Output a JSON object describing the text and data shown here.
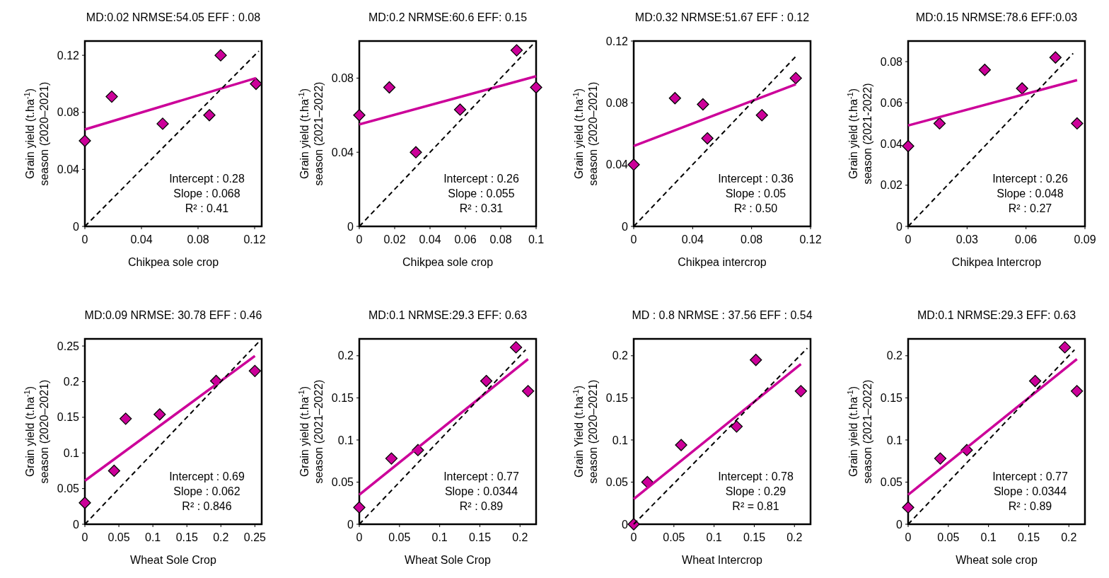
{
  "chart_data": [
    {
      "type": "scatter",
      "title": "MD:0.02 NRMSE:54.05 EFF : 0.08",
      "xlabel": "Chikpea sole crop",
      "ylabel": "Grain yield (t.ha$^{-1}$)\nseason (2020–2021)",
      "xlim": [
        0,
        0.125
      ],
      "ylim": [
        0,
        0.13
      ],
      "xticks": [
        0,
        0.04,
        0.08,
        0.12
      ],
      "yticks": [
        0,
        0.04,
        0.08,
        0.12
      ],
      "annotations": [
        "Intercept : 0.28",
        "Slope : 0.068",
        "R² : 0.41"
      ],
      "series": [
        {
          "marker": "diamond",
          "color": "#cc0099",
          "x": [
            0,
            0.019,
            0.055,
            0.088,
            0.096,
            0.121
          ],
          "values": [
            0.06,
            0.091,
            0.072,
            0.078,
            0.12,
            0.1
          ]
        },
        {
          "type": "line",
          "color": "#cc0099",
          "line_style": "solid",
          "x": [
            0,
            0.121
          ],
          "values": [
            0.068,
            0.104
          ]
        },
        {
          "type": "line",
          "color": "#000000",
          "line_style": "dashed",
          "x": [
            0,
            0.123
          ],
          "values": [
            0,
            0.123
          ]
        }
      ]
    },
    {
      "type": "scatter",
      "title": "MD:0.2 NRMSE:60.6 EFF: 0.15",
      "xlabel": "Chikpea sole crop",
      "ylabel": "Grain yield (t.ha$^{-1}$)\nseason (2021–2022)",
      "xlim": [
        0,
        0.1
      ],
      "ylim": [
        0,
        0.1
      ],
      "xticks": [
        0,
        0.02,
        0.04,
        0.06,
        0.08,
        0.1
      ],
      "yticks": [
        0,
        0.04,
        0.08
      ],
      "annotations": [
        "Intercept : 0.26",
        "Slope : 0.055",
        "R² : 0.31"
      ],
      "series": [
        {
          "marker": "diamond",
          "color": "#cc0099",
          "x": [
            0,
            0.017,
            0.032,
            0.057,
            0.089,
            0.1
          ],
          "values": [
            0.06,
            0.075,
            0.04,
            0.063,
            0.095,
            0.075
          ]
        },
        {
          "type": "line",
          "color": "#cc0099",
          "line_style": "solid",
          "x": [
            0,
            0.1
          ],
          "values": [
            0.055,
            0.081
          ]
        },
        {
          "type": "line",
          "color": "#000000",
          "line_style": "dashed",
          "x": [
            0,
            0.099
          ],
          "values": [
            0,
            0.099
          ]
        }
      ]
    },
    {
      "type": "scatter",
      "title": "MD:0.32 NRMSE:51.67 EFF : 0.12",
      "xlabel": "Chikpea intercrop",
      "ylabel": "Grain yield (t.ha$^{-1}$)\nseason (2020–2021)",
      "xlim": [
        0,
        0.12
      ],
      "ylim": [
        0,
        0.12
      ],
      "xticks": [
        0,
        0.04,
        0.08,
        0.12
      ],
      "yticks": [
        0,
        0.04,
        0.08,
        0.12
      ],
      "annotations": [
        "Intercept : 0.36",
        "Slope : 0.05",
        "R² : 0.50"
      ],
      "series": [
        {
          "marker": "diamond",
          "color": "#cc0099",
          "x": [
            0,
            0.028,
            0.047,
            0.05,
            0.087,
            0.11
          ],
          "values": [
            0.04,
            0.083,
            0.079,
            0.057,
            0.072,
            0.096
          ]
        },
        {
          "type": "line",
          "color": "#cc0099",
          "line_style": "solid",
          "x": [
            0,
            0.11
          ],
          "values": [
            0.052,
            0.092
          ]
        },
        {
          "type": "line",
          "color": "#000000",
          "line_style": "dashed",
          "x": [
            0,
            0.11
          ],
          "values": [
            0,
            0.11
          ]
        }
      ]
    },
    {
      "type": "scatter",
      "title": "MD:0.15 NRMSE:78.6 EFF:0.03",
      "xlabel": "Chikpea Intercrop",
      "ylabel": "Grain yield (t.ha$^{-1}$)\nseason (2021-2022)",
      "xlim": [
        0,
        0.09
      ],
      "ylim": [
        0,
        0.09
      ],
      "xticks": [
        0,
        0.03,
        0.06,
        0.09
      ],
      "yticks": [
        0,
        0.02,
        0.04,
        0.06,
        0.08
      ],
      "annotations": [
        "Intercept : 0.26",
        "Slope : 0.048",
        "R² : 0.27"
      ],
      "series": [
        {
          "marker": "diamond",
          "color": "#cc0099",
          "x": [
            0,
            0.016,
            0.039,
            0.058,
            0.075,
            0.086
          ],
          "values": [
            0.039,
            0.05,
            0.076,
            0.067,
            0.082,
            0.05
          ]
        },
        {
          "type": "line",
          "color": "#cc0099",
          "line_style": "solid",
          "x": [
            0,
            0.086
          ],
          "values": [
            0.049,
            0.071
          ]
        },
        {
          "type": "line",
          "color": "#000000",
          "line_style": "dashed",
          "x": [
            0,
            0.084
          ],
          "values": [
            0,
            0.084
          ]
        }
      ]
    },
    {
      "type": "scatter",
      "title": "MD:0.09 NRMSE: 30.78 EFF : 0.46",
      "xlabel": "Wheat Sole Crop",
      "ylabel": "Grain yield (t.ha$^{-1}$)\nseason (2020–2021)",
      "xlim": [
        0,
        0.26
      ],
      "ylim": [
        0,
        0.26
      ],
      "xticks": [
        0,
        0.05,
        0.1,
        0.15,
        0.2,
        0.25
      ],
      "yticks": [
        0,
        0.05,
        0.1,
        0.15,
        0.2,
        0.25
      ],
      "annotations": [
        "Intercept : 0.69",
        "Slope : 0.062",
        "R² : 0.846"
      ],
      "series": [
        {
          "marker": "diamond",
          "color": "#cc0099",
          "x": [
            0,
            0.043,
            0.06,
            0.11,
            0.193,
            0.25
          ],
          "values": [
            0.03,
            0.075,
            0.148,
            0.154,
            0.201,
            0.215
          ]
        },
        {
          "type": "line",
          "color": "#cc0099",
          "line_style": "solid",
          "x": [
            0,
            0.25
          ],
          "values": [
            0.061,
            0.236
          ]
        },
        {
          "type": "line",
          "color": "#000000",
          "line_style": "dashed",
          "x": [
            0,
            0.255
          ],
          "values": [
            0,
            0.255
          ]
        }
      ]
    },
    {
      "type": "scatter",
      "title": "MD:0.1 NRMSE:29.3 EFF: 0.63",
      "xlabel": "Wheat Sole Crop",
      "ylabel": "Grain yield (t.ha$^{-1}$)\nseason (2021–2022)",
      "xlim": [
        0,
        0.22
      ],
      "ylim": [
        0,
        0.22
      ],
      "xticks": [
        0,
        0.05,
        0.1,
        0.15,
        0.2
      ],
      "yticks": [
        0,
        0.05,
        0.1,
        0.15,
        0.2
      ],
      "annotations": [
        "Intercept : 0.77",
        "Slope : 0.0344",
        "R² : 0.89"
      ],
      "series": [
        {
          "marker": "diamond",
          "color": "#cc0099",
          "x": [
            0,
            0.04,
            0.073,
            0.158,
            0.195,
            0.21
          ],
          "values": [
            0.02,
            0.078,
            0.088,
            0.17,
            0.21,
            0.158
          ]
        },
        {
          "type": "line",
          "color": "#cc0099",
          "line_style": "solid",
          "x": [
            0,
            0.21
          ],
          "values": [
            0.035,
            0.196
          ]
        },
        {
          "type": "line",
          "color": "#000000",
          "line_style": "dashed",
          "x": [
            0,
            0.207
          ],
          "values": [
            0,
            0.207
          ]
        }
      ]
    },
    {
      "type": "scatter",
      "title": "MD : 0.8 NRMSE : 37.56 EFF : 0.54",
      "xlabel": "Wheat Intercrop",
      "ylabel": "Grain Yield (t.ha$^{-1}$)\nseason (2020–2021)",
      "xlim": [
        0,
        0.22
      ],
      "ylim": [
        0,
        0.22
      ],
      "xticks": [
        0,
        0.05,
        0.1,
        0.15,
        0.2
      ],
      "yticks": [
        0,
        0.05,
        0.1,
        0.15,
        0.2
      ],
      "annotations": [
        "Intercept : 0.78",
        "Slope : 0.29",
        "R² = 0.81"
      ],
      "series": [
        {
          "marker": "diamond",
          "color": "#cc0099",
          "x": [
            0,
            0.017,
            0.059,
            0.128,
            0.152,
            0.208
          ],
          "values": [
            0,
            0.05,
            0.094,
            0.116,
            0.195,
            0.158
          ]
        },
        {
          "type": "line",
          "color": "#cc0099",
          "line_style": "solid",
          "x": [
            0,
            0.208
          ],
          "values": [
            0.03,
            0.19
          ]
        },
        {
          "type": "line",
          "color": "#000000",
          "line_style": "dashed",
          "x": [
            0,
            0.216
          ],
          "values": [
            0,
            0.209
          ]
        }
      ]
    },
    {
      "type": "scatter",
      "title": "MD:0.1 NRMSE:29.3 EFF: 0.63",
      "xlabel": "Wheat sole crop",
      "ylabel": "Grain yield (t.ha$^{-1}$)\nseason (2021–2022)",
      "xlim": [
        0,
        0.22
      ],
      "ylim": [
        0,
        0.22
      ],
      "xticks": [
        0,
        0.05,
        0.1,
        0.15,
        0.2
      ],
      "yticks": [
        0,
        0.05,
        0.1,
        0.15,
        0.2
      ],
      "annotations": [
        "Intercept : 0.77",
        "Slope : 0.0344",
        "R² : 0.89"
      ],
      "series": [
        {
          "marker": "diamond",
          "color": "#cc0099",
          "x": [
            0,
            0.04,
            0.073,
            0.158,
            0.195,
            0.21
          ],
          "values": [
            0.02,
            0.078,
            0.088,
            0.17,
            0.21,
            0.158
          ]
        },
        {
          "type": "line",
          "color": "#cc0099",
          "line_style": "solid",
          "x": [
            0,
            0.21
          ],
          "values": [
            0.035,
            0.196
          ]
        },
        {
          "type": "line",
          "color": "#000000",
          "line_style": "dashed",
          "x": [
            0,
            0.207
          ],
          "values": [
            0,
            0.207
          ]
        }
      ]
    }
  ]
}
